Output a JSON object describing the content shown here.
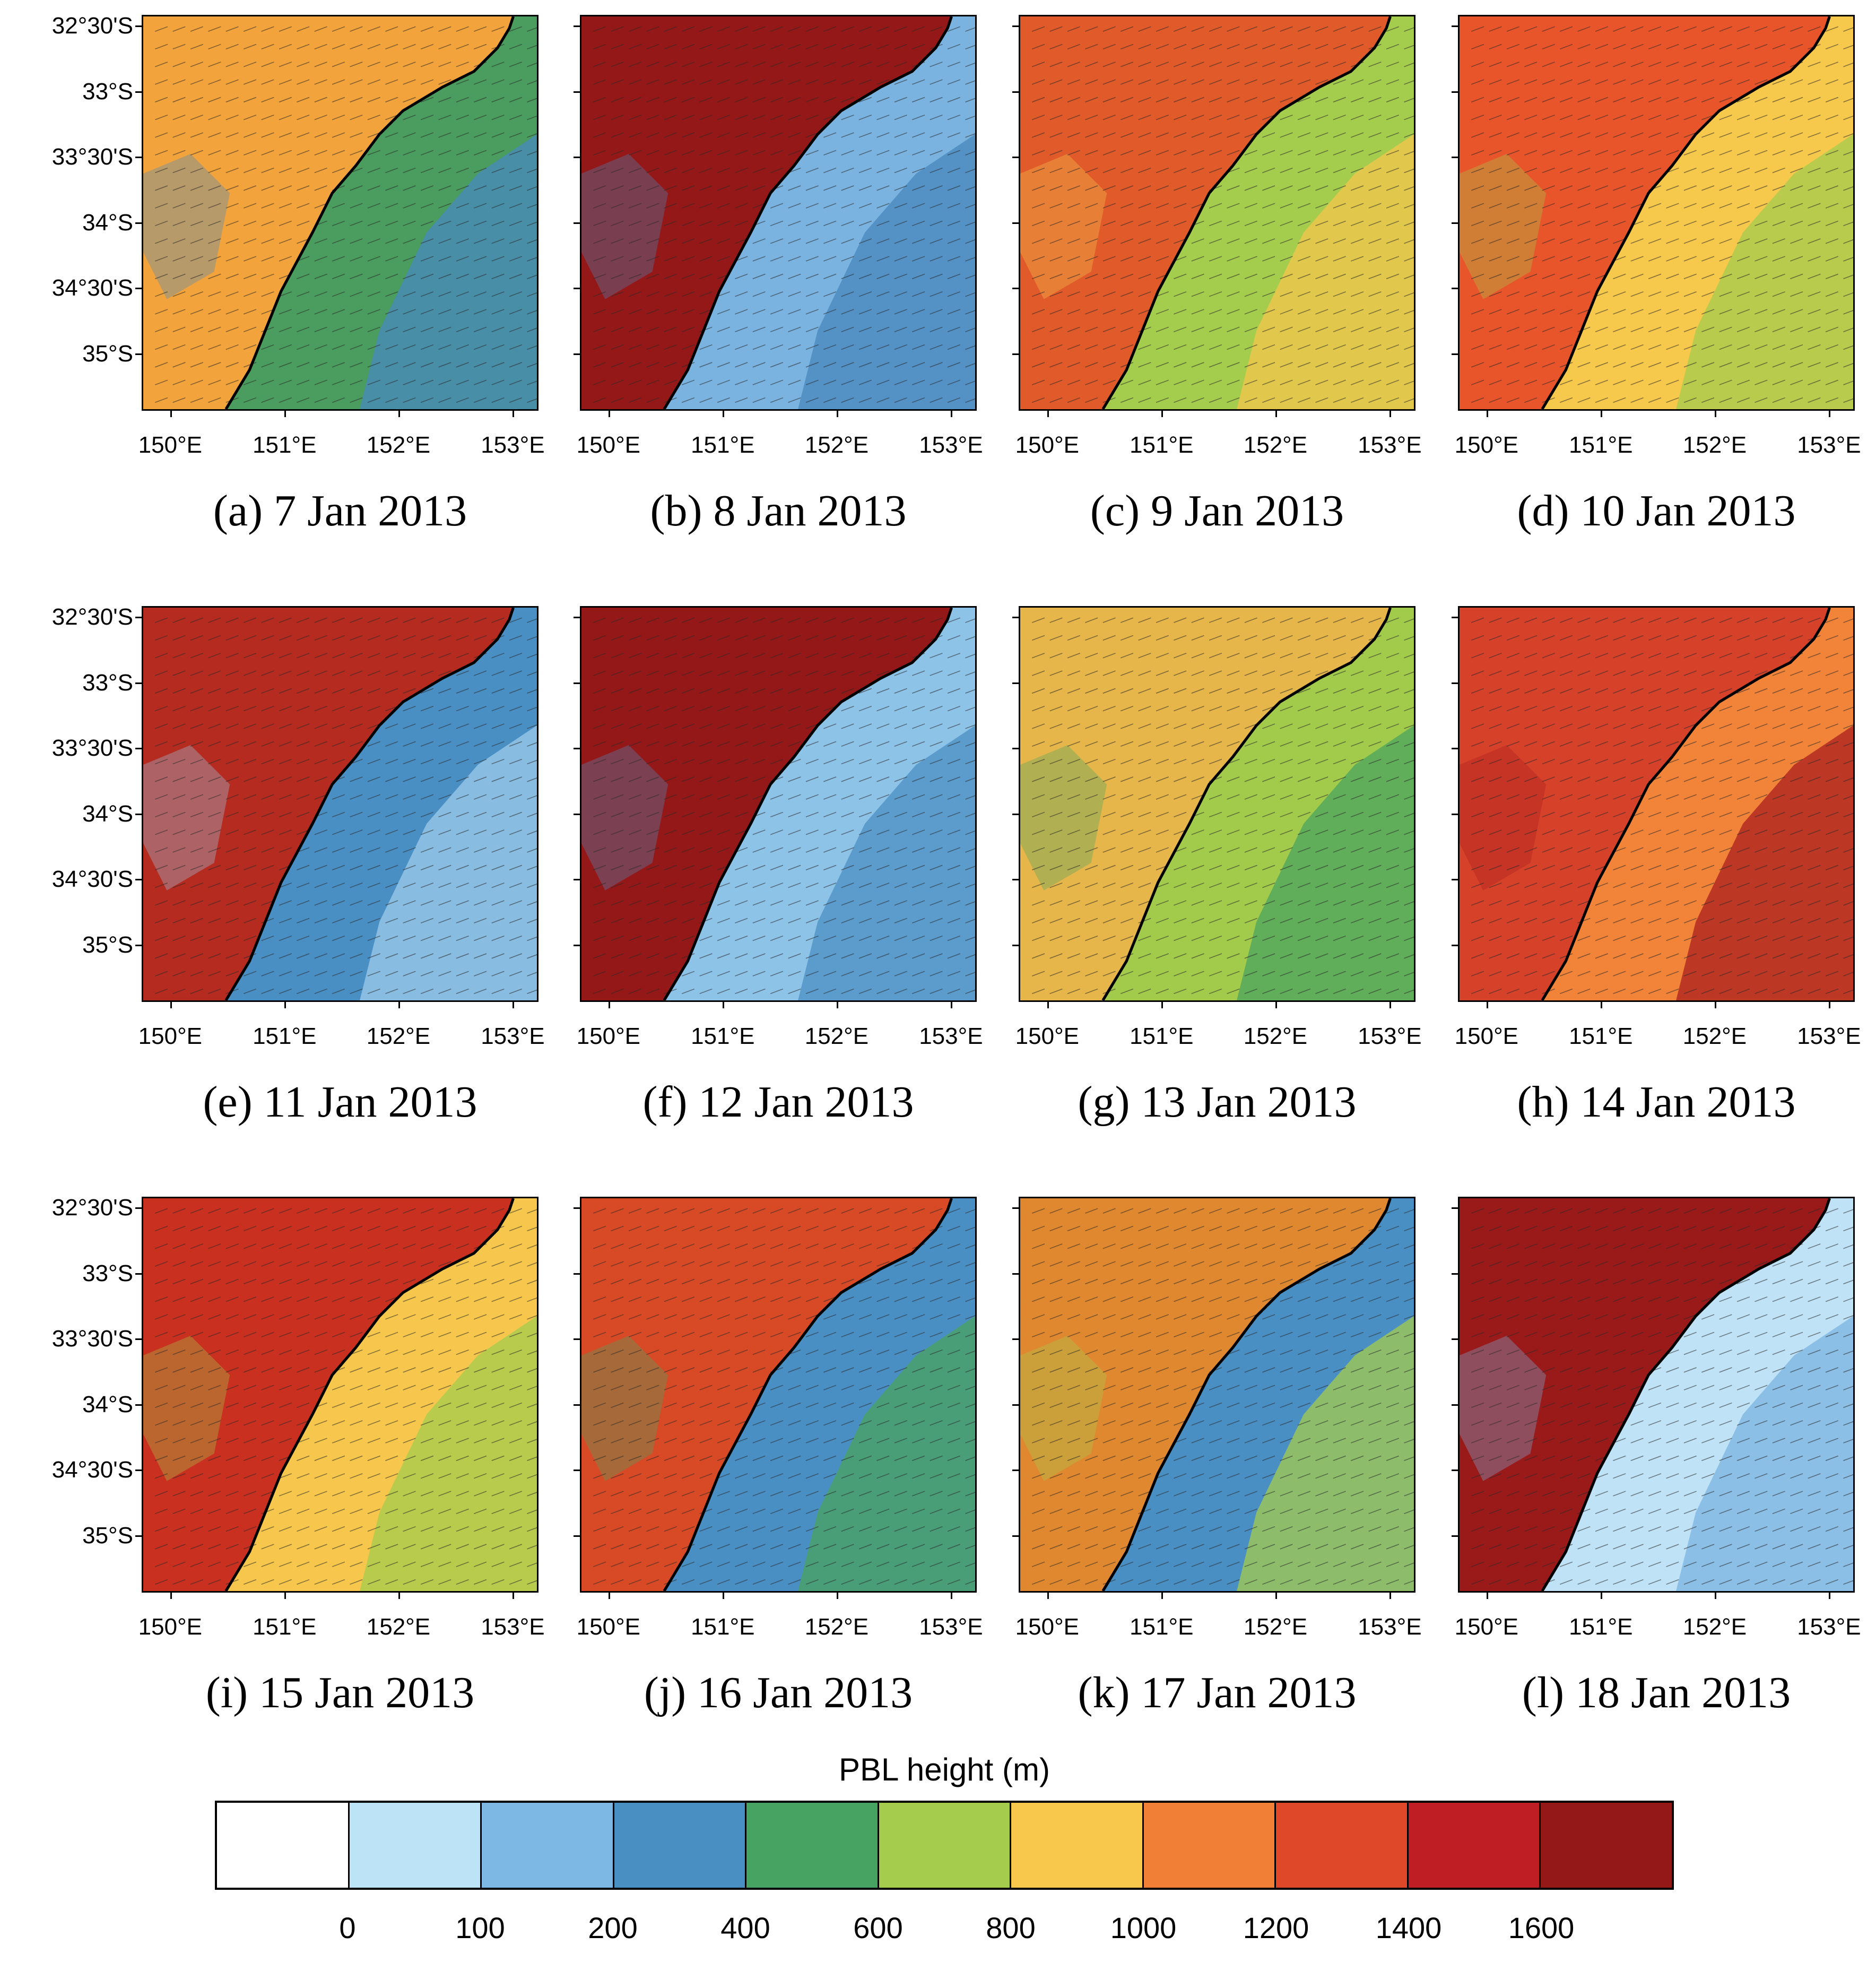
{
  "figure": {
    "lat_labels": [
      "32°30'S",
      "33°S",
      "33°30'S",
      "34°S",
      "34°30'S",
      "35°S"
    ],
    "lon_labels": [
      "150°E",
      "151°E",
      "152°E",
      "153°E"
    ],
    "panels": [
      {
        "caption": "(a) 7 Jan 2013",
        "land": "#f3a33b",
        "ocean": "#4a9d5e",
        "accent": "#4889c0"
      },
      {
        "caption": "(b) 8 Jan 2013",
        "land": "#951818",
        "ocean": "#7ab3e0",
        "accent": "#4887bd"
      },
      {
        "caption": "(c) 9 Jan 2013",
        "land": "#e05a2a",
        "ocean": "#a4cc4d",
        "accent": "#f6c74c"
      },
      {
        "caption": "(d) 10 Jan 2013",
        "land": "#e8552a",
        "ocean": "#f6c84c",
        "accent": "#a4cc4d"
      },
      {
        "caption": "(e) 11 Jan 2013",
        "land": "#b52b1f",
        "ocean": "#4a8fc4",
        "accent": "#9ecbea"
      },
      {
        "caption": "(f) 12 Jan 2013",
        "land": "#951818",
        "ocean": "#8ec3e8",
        "accent": "#4a8fc4"
      },
      {
        "caption": "(g) 13 Jan 2013",
        "land": "#e6b64a",
        "ocean": "#a2cb4c",
        "accent": "#4aa35f"
      },
      {
        "caption": "(h) 14 Jan 2013",
        "land": "#d6412a",
        "ocean": "#f2843a",
        "accent": "#a91d1d"
      },
      {
        "caption": "(i) 15 Jan 2013",
        "land": "#c9301f",
        "ocean": "#f6c74c",
        "accent": "#a4cc4d"
      },
      {
        "caption": "(j) 16 Jan 2013",
        "land": "#d84a25",
        "ocean": "#4a8fc4",
        "accent": "#4aa35f"
      },
      {
        "caption": "(k) 17 Jan 2013",
        "land": "#e0882f",
        "ocean": "#4a8fc4",
        "accent": "#a4cc4d"
      },
      {
        "caption": "(l) 18 Jan 2013",
        "land": "#9a1a1a",
        "ocean": "#bfe2f6",
        "accent": "#7ab3e0"
      }
    ]
  },
  "colorbar": {
    "title": "PBL height  (m)",
    "colors": [
      "#ffffff",
      "#bde3f7",
      "#7db7e3",
      "#4a8fc1",
      "#47a362",
      "#a6cc4e",
      "#f8c84d",
      "#f27f36",
      "#e0482a",
      "#bf1f24",
      "#951818"
    ],
    "labels": [
      "0",
      "100",
      "200",
      "400",
      "600",
      "800",
      "1000",
      "1200",
      "1400",
      "1600"
    ]
  }
}
